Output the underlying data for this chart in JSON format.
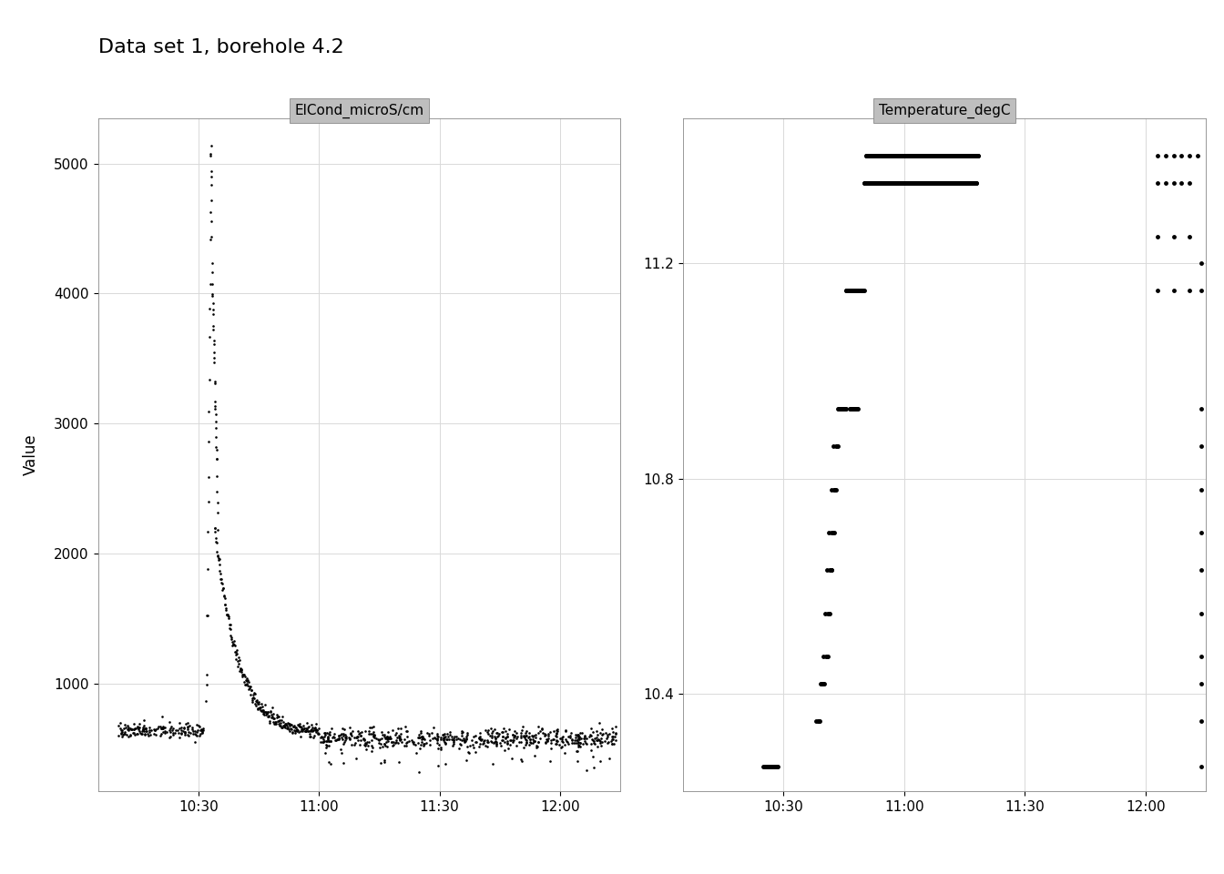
{
  "title": "Data set 1, borehole 4.2",
  "panel1_label": "ElCond_microS/cm",
  "panel2_label": "Temperature_degC",
  "ylabel": "Value",
  "background_color": "#ffffff",
  "panel_bg": "#ffffff",
  "header_bg": "#bebebe",
  "grid_color": "#d9d9d9",
  "point_color": "#000000",
  "point_size": 3.5,
  "panel1_ylim": [
    175,
    5350
  ],
  "panel1_yticks": [
    1000,
    2000,
    3000,
    4000,
    5000
  ],
  "panel2_ylim": [
    10.22,
    11.47
  ],
  "panel2_yticks": [
    10.4,
    10.8,
    11.2
  ],
  "xtick_labels": [
    "10:30",
    "11:00",
    "11:30",
    "12:00"
  ],
  "xtick_values": [
    20,
    50,
    80,
    110
  ],
  "xlim": [
    -5,
    125
  ],
  "title_fontsize": 16,
  "axis_fontsize": 11,
  "ylabel_fontsize": 12
}
